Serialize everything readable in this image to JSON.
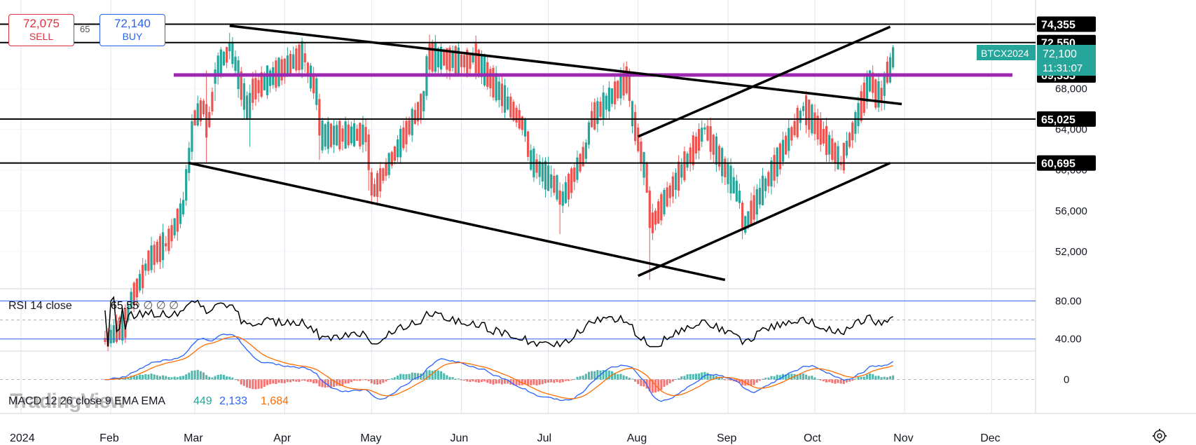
{
  "header": {
    "sell_price": "72,075",
    "sell_label": "SELL",
    "buy_price": "72,140",
    "buy_label": "BUY",
    "spread": "65"
  },
  "watermark": "TradingView",
  "colors": {
    "up": "#26a69a",
    "down": "#ef5350",
    "purple_line": "#9c27b0",
    "rsi_band": "#2962ff",
    "macd_line": "#2962ff",
    "signal_line": "#ff6d00"
  },
  "chart_data": {
    "type": "candlestick",
    "symbol_tag": "BTCX2024",
    "last_price": "72,100",
    "countdown": "11:31:07",
    "x_axis_labels": [
      "2024",
      "Feb",
      "Mar",
      "Apr",
      "May",
      "Jun",
      "Jul",
      "Aug",
      "Sep",
      "Oct",
      "Nov",
      "Dec"
    ],
    "price_axis_labels": [
      "68,000",
      "64,000",
      "60,000",
      "56,000",
      "52,000"
    ],
    "price_range": [
      48400,
      75700
    ],
    "horizontal_levels": [
      {
        "value": 74355,
        "label": "74,355"
      },
      {
        "value": 72550,
        "label": "72,550"
      },
      {
        "value": 69355,
        "label": "69,355",
        "color": "purple"
      },
      {
        "value": 65025,
        "label": "65,025"
      },
      {
        "value": 60695,
        "label": "60,695"
      }
    ],
    "trend_lines": [
      {
        "from": [
          "2024-03-13",
          74200
        ],
        "to": [
          "2024-10-31",
          66500
        ]
      },
      {
        "from": [
          "2024-02-28",
          60700
        ],
        "to": [
          "2024-08-31",
          49200
        ]
      },
      {
        "from": [
          "2024-08-01",
          63300
        ],
        "to": [
          "2024-10-27",
          74100
        ]
      },
      {
        "from": [
          "2024-08-01",
          49600
        ],
        "to": [
          "2024-10-27",
          60700
        ]
      }
    ],
    "candle_samples": [
      [
        "2024-01-30",
        43500,
        44200,
        42800,
        43100
      ],
      [
        "2024-02-07",
        45200,
        46900,
        45000,
        46700
      ],
      [
        "2024-02-13",
        50100,
        51200,
        49600,
        50800
      ],
      [
        "2024-02-20",
        52800,
        53500,
        52000,
        52500
      ],
      [
        "2024-02-27",
        57000,
        60500,
        56500,
        60100
      ],
      [
        "2024-02-29",
        61800,
        65500,
        61000,
        64800
      ],
      [
        "2024-03-05",
        66500,
        69800,
        60800,
        63200
      ],
      [
        "2024-03-08",
        68500,
        70600,
        66800,
        69900
      ],
      [
        "2024-03-13",
        71700,
        73500,
        70900,
        72600
      ],
      [
        "2024-03-20",
        65100,
        68400,
        62300,
        67600
      ],
      [
        "2024-04-08",
        71500,
        72500,
        69600,
        70600
      ],
      [
        "2024-04-13",
        67000,
        67500,
        61000,
        63400
      ],
      [
        "2024-04-30",
        63500,
        64000,
        58000,
        60000
      ],
      [
        "2024-05-01",
        59800,
        60200,
        56600,
        57500
      ],
      [
        "2024-05-20",
        67300,
        71400,
        66900,
        71200
      ],
      [
        "2024-06-05",
        70600,
        72100,
        70400,
        71400
      ],
      [
        "2024-06-24",
        63800,
        63900,
        60900,
        61300
      ],
      [
        "2024-07-05",
        58000,
        58800,
        53700,
        56600
      ],
      [
        "2024-07-15",
        62500,
        64900,
        62100,
        64700
      ],
      [
        "2024-07-29",
        69200,
        70000,
        66200,
        66800
      ],
      [
        "2024-08-05",
        58000,
        58400,
        49200,
        54300
      ],
      [
        "2024-08-24",
        64000,
        64600,
        63500,
        64200
      ],
      [
        "2024-09-06",
        56800,
        57000,
        53200,
        54100
      ],
      [
        "2024-09-27",
        65800,
        66700,
        65300,
        66300
      ],
      [
        "2024-10-10",
        60800,
        61400,
        60000,
        60500
      ],
      [
        "2024-10-21",
        69600,
        70300,
        67000,
        67600
      ],
      [
        "2024-10-25",
        67300,
        69700,
        65900,
        69400
      ],
      [
        "2024-10-28",
        70100,
        72300,
        69900,
        72100
      ]
    ],
    "rsi": {
      "label": "RSI 14 close",
      "value": "65.55",
      "placeholders": "∅ ∅ ∅ ∅",
      "levels": [
        80,
        40
      ],
      "axis_labels": [
        "80.00",
        "40.00"
      ]
    },
    "macd": {
      "label": "MACD 12 26 close 9 EMA EMA",
      "histogram": "449",
      "macd_value": "2,133",
      "signal_value": "1,684",
      "axis_label": "0"
    }
  }
}
